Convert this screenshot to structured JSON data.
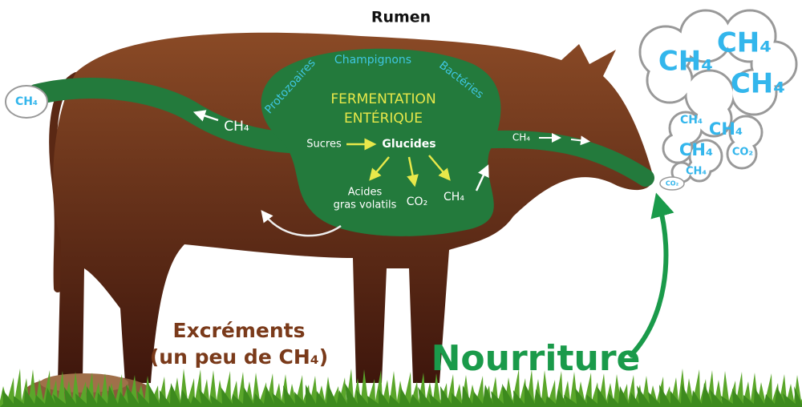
{
  "title": "Rumen",
  "rumen": {
    "microbes": [
      "Protozoaires",
      "Champignons",
      "Bactéries"
    ],
    "process": [
      "FERMENTATION",
      "ENTÉRIQUE"
    ],
    "input": "Sucres",
    "intermediate": "Glucides",
    "products": {
      "acids": [
        "Acides",
        "gras volatils"
      ],
      "co2": "CO₂",
      "ch4": "CH₄"
    }
  },
  "tract": {
    "tail_gas": "CH₄",
    "rear_gas": "CH₄",
    "front_gas": "CH₄"
  },
  "clouds": {
    "large": [
      "CH₄",
      "CH₄",
      "CH₄"
    ],
    "medium": [
      "CH₄",
      "CH₄",
      "CH₄",
      "CO₂"
    ],
    "small": [
      "CH₄",
      "CO₂"
    ]
  },
  "manure": [
    "Excréments",
    "(un peu de CH₄)"
  ],
  "food": "Nourriture"
}
